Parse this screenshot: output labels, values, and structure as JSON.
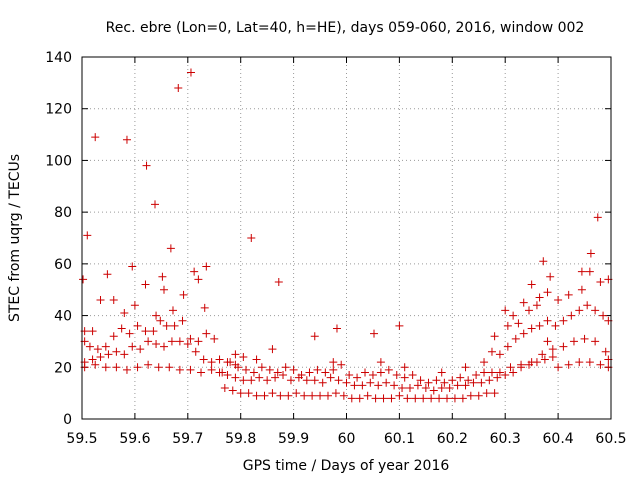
{
  "chart_data": {
    "type": "scatter",
    "title": "Rec. ebre (Lon=0, Lat=40, h=HE), days 059-060, 2016, window 002",
    "xlabel": "GPS time / Days of year 2016",
    "ylabel": "STEC from uqrg / TECUs",
    "xlim": [
      59.5,
      60.5
    ],
    "ylim": [
      0,
      140
    ],
    "x_ticks": [
      59.5,
      59.6,
      59.7,
      59.8,
      59.9,
      60.0,
      60.1,
      60.2,
      60.3,
      60.4,
      60.5
    ],
    "x_tick_labels": [
      "59.5",
      "59.6",
      "59.7",
      "59.8",
      "59.9",
      "60",
      "60.1",
      "60.2",
      "60.3",
      "60.4",
      "60.5"
    ],
    "y_ticks": [
      0,
      20,
      40,
      60,
      80,
      100,
      120,
      140
    ],
    "y_tick_labels": [
      "0",
      "20",
      "40",
      "60",
      "80",
      "100",
      "120",
      "140"
    ],
    "grid": true,
    "legend": "none",
    "marker": "plus",
    "color": "#cc0000",
    "series": [
      {
        "points": [
          [
            59.502,
            54
          ],
          [
            59.51,
            71
          ],
          [
            59.525,
            109
          ],
          [
            59.548,
            56
          ],
          [
            59.585,
            108
          ],
          [
            59.595,
            59
          ],
          [
            59.622,
            98
          ],
          [
            59.638,
            83
          ],
          [
            59.652,
            55
          ],
          [
            59.668,
            66
          ],
          [
            59.682,
            128
          ],
          [
            59.706,
            134
          ],
          [
            59.712,
            57
          ],
          [
            59.735,
            59
          ],
          [
            59.82,
            70
          ],
          [
            59.872,
            53
          ],
          [
            59.982,
            35
          ],
          [
            60.052,
            33
          ],
          [
            60.1,
            36
          ],
          [
            59.505,
            34
          ],
          [
            59.52,
            34
          ],
          [
            59.535,
            46
          ],
          [
            59.56,
            46
          ],
          [
            59.58,
            41
          ],
          [
            59.6,
            44
          ],
          [
            59.62,
            52
          ],
          [
            59.64,
            40
          ],
          [
            59.655,
            50
          ],
          [
            59.672,
            42
          ],
          [
            59.692,
            48
          ],
          [
            59.72,
            54
          ],
          [
            59.732,
            43
          ],
          [
            59.505,
            30
          ],
          [
            59.515,
            28
          ],
          [
            59.53,
            27
          ],
          [
            59.545,
            28
          ],
          [
            59.56,
            32
          ],
          [
            59.575,
            35
          ],
          [
            59.59,
            33
          ],
          [
            59.605,
            36
          ],
          [
            59.62,
            34
          ],
          [
            59.635,
            34
          ],
          [
            59.648,
            38
          ],
          [
            59.66,
            36
          ],
          [
            59.675,
            36
          ],
          [
            59.69,
            38
          ],
          [
            59.705,
            31
          ],
          [
            59.72,
            30
          ],
          [
            59.735,
            33
          ],
          [
            59.75,
            31
          ],
          [
            59.505,
            22
          ],
          [
            59.52,
            23
          ],
          [
            59.535,
            24
          ],
          [
            59.55,
            25
          ],
          [
            59.565,
            26
          ],
          [
            59.58,
            25
          ],
          [
            59.595,
            28
          ],
          [
            59.61,
            27
          ],
          [
            59.625,
            30
          ],
          [
            59.64,
            29
          ],
          [
            59.655,
            28
          ],
          [
            59.67,
            30
          ],
          [
            59.685,
            30
          ],
          [
            59.7,
            29
          ],
          [
            59.715,
            26
          ],
          [
            59.73,
            23
          ],
          [
            59.745,
            22
          ],
          [
            59.76,
            23
          ],
          [
            59.775,
            22
          ],
          [
            59.79,
            21
          ],
          [
            59.505,
            20
          ],
          [
            59.525,
            21
          ],
          [
            59.545,
            20
          ],
          [
            59.565,
            20
          ],
          [
            59.585,
            19
          ],
          [
            59.605,
            20
          ],
          [
            59.625,
            21
          ],
          [
            59.645,
            20
          ],
          [
            59.665,
            20
          ],
          [
            59.685,
            19
          ],
          [
            59.705,
            19
          ],
          [
            59.725,
            18
          ],
          [
            59.745,
            19
          ],
          [
            59.765,
            18
          ],
          [
            59.76,
            18
          ],
          [
            59.775,
            17
          ],
          [
            59.79,
            16
          ],
          [
            59.805,
            15
          ],
          [
            59.82,
            15
          ],
          [
            59.835,
            16
          ],
          [
            59.85,
            15
          ],
          [
            59.865,
            16
          ],
          [
            59.88,
            17
          ],
          [
            59.895,
            15
          ],
          [
            59.91,
            16
          ],
          [
            59.925,
            15
          ],
          [
            59.94,
            15
          ],
          [
            59.955,
            14
          ],
          [
            59.97,
            16
          ],
          [
            59.985,
            15
          ],
          [
            60.0,
            14
          ],
          [
            60.015,
            13
          ],
          [
            60.03,
            13
          ],
          [
            60.045,
            14
          ],
          [
            60.06,
            13
          ],
          [
            60.075,
            14
          ],
          [
            60.09,
            13
          ],
          [
            60.105,
            12
          ],
          [
            60.12,
            12
          ],
          [
            60.135,
            13
          ],
          [
            60.15,
            12
          ],
          [
            60.165,
            11
          ],
          [
            60.18,
            12
          ],
          [
            60.195,
            12
          ],
          [
            60.21,
            13
          ],
          [
            60.225,
            13
          ],
          [
            60.24,
            14
          ],
          [
            60.255,
            14
          ],
          [
            60.27,
            15
          ],
          [
            60.285,
            16
          ],
          [
            60.3,
            17
          ],
          [
            60.315,
            18
          ],
          [
            60.33,
            20
          ],
          [
            60.345,
            21
          ],
          [
            60.36,
            22
          ],
          [
            60.375,
            23
          ],
          [
            60.39,
            24
          ],
          [
            59.77,
            12
          ],
          [
            59.785,
            11
          ],
          [
            59.8,
            10
          ],
          [
            59.815,
            10
          ],
          [
            59.83,
            9
          ],
          [
            59.845,
            9
          ],
          [
            59.86,
            10
          ],
          [
            59.875,
            9
          ],
          [
            59.89,
            9
          ],
          [
            59.905,
            10
          ],
          [
            59.92,
            9
          ],
          [
            59.935,
            9
          ],
          [
            59.95,
            9
          ],
          [
            59.965,
            9
          ],
          [
            59.98,
            10
          ],
          [
            59.995,
            9
          ],
          [
            60.01,
            8
          ],
          [
            60.025,
            8
          ],
          [
            60.04,
            9
          ],
          [
            60.055,
            8
          ],
          [
            60.07,
            8
          ],
          [
            60.085,
            8
          ],
          [
            60.1,
            9
          ],
          [
            60.115,
            8
          ],
          [
            60.13,
            8
          ],
          [
            60.145,
            8
          ],
          [
            60.16,
            8
          ],
          [
            60.175,
            8
          ],
          [
            60.19,
            8
          ],
          [
            60.205,
            8
          ],
          [
            60.22,
            8
          ],
          [
            60.235,
            9
          ],
          [
            60.25,
            9
          ],
          [
            60.265,
            10
          ],
          [
            60.28,
            10
          ],
          [
            59.78,
            22
          ],
          [
            59.795,
            20
          ],
          [
            59.81,
            19
          ],
          [
            59.825,
            18
          ],
          [
            59.84,
            20
          ],
          [
            59.855,
            19
          ],
          [
            59.87,
            18
          ],
          [
            59.885,
            20
          ],
          [
            59.9,
            19
          ],
          [
            59.915,
            17
          ],
          [
            59.93,
            18
          ],
          [
            59.945,
            19
          ],
          [
            59.96,
            18
          ],
          [
            59.975,
            19
          ],
          [
            59.99,
            21
          ],
          [
            60.005,
            17
          ],
          [
            60.02,
            16
          ],
          [
            60.035,
            18
          ],
          [
            60.05,
            17
          ],
          [
            60.065,
            18
          ],
          [
            60.08,
            19
          ],
          [
            60.095,
            17
          ],
          [
            60.11,
            16
          ],
          [
            60.125,
            17
          ],
          [
            60.14,
            15
          ],
          [
            60.155,
            14
          ],
          [
            60.17,
            15
          ],
          [
            60.185,
            14
          ],
          [
            60.2,
            15
          ],
          [
            60.215,
            16
          ],
          [
            60.23,
            15
          ],
          [
            60.245,
            17
          ],
          [
            60.26,
            18
          ],
          [
            60.275,
            18
          ],
          [
            59.79,
            25
          ],
          [
            59.805,
            24
          ],
          [
            59.83,
            23
          ],
          [
            59.86,
            27
          ],
          [
            59.94,
            32
          ],
          [
            59.975,
            22
          ],
          [
            60.065,
            22
          ],
          [
            60.11,
            20
          ],
          [
            60.18,
            18
          ],
          [
            60.225,
            20
          ],
          [
            60.26,
            22
          ],
          [
            60.275,
            26
          ],
          [
            60.29,
            25
          ],
          [
            60.305,
            28
          ],
          [
            60.32,
            31
          ],
          [
            60.335,
            33
          ],
          [
            60.35,
            35
          ],
          [
            60.365,
            36
          ],
          [
            60.38,
            38
          ],
          [
            60.395,
            36
          ],
          [
            60.41,
            38
          ],
          [
            60.425,
            40
          ],
          [
            60.44,
            42
          ],
          [
            60.455,
            44
          ],
          [
            60.47,
            42
          ],
          [
            60.485,
            40
          ],
          [
            60.495,
            38
          ],
          [
            60.3,
            42
          ],
          [
            60.315,
            40
          ],
          [
            60.335,
            45
          ],
          [
            60.35,
            52
          ],
          [
            60.365,
            47
          ],
          [
            60.38,
            49
          ],
          [
            60.4,
            46
          ],
          [
            60.42,
            48
          ],
          [
            60.445,
            50
          ],
          [
            60.46,
            57
          ],
          [
            60.48,
            53
          ],
          [
            60.495,
            54
          ],
          [
            60.372,
            61
          ],
          [
            60.385,
            55
          ],
          [
            60.445,
            57
          ],
          [
            60.462,
            64
          ],
          [
            60.475,
            78
          ],
          [
            60.29,
            18
          ],
          [
            60.31,
            20
          ],
          [
            60.33,
            21
          ],
          [
            60.35,
            22
          ],
          [
            60.37,
            25
          ],
          [
            60.39,
            27
          ],
          [
            60.41,
            28
          ],
          [
            60.43,
            30
          ],
          [
            60.45,
            31
          ],
          [
            60.47,
            30
          ],
          [
            60.49,
            26
          ],
          [
            60.495,
            23
          ],
          [
            60.4,
            20
          ],
          [
            60.42,
            21
          ],
          [
            60.44,
            22
          ],
          [
            60.46,
            22
          ],
          [
            60.48,
            21
          ],
          [
            60.495,
            20
          ],
          [
            60.28,
            32
          ],
          [
            60.305,
            36
          ],
          [
            60.325,
            37
          ],
          [
            60.345,
            42
          ],
          [
            60.36,
            44
          ],
          [
            60.38,
            30
          ]
        ]
      }
    ]
  }
}
